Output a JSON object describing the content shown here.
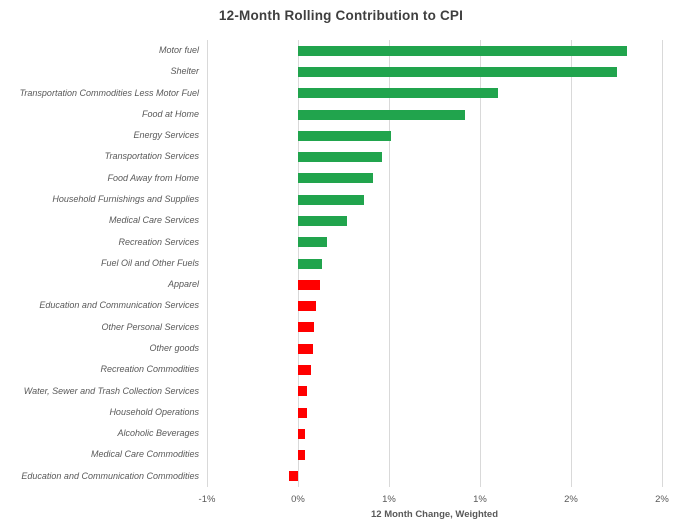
{
  "title": "12-Month Rolling Contribution to CPI",
  "colors": {
    "positive_bar": "#21a44d",
    "negative_and_flagged_bar": "#ff0000",
    "gridline": "#d9d9d9",
    "axis_text": "#595959",
    "title_text": "#3f3f3f",
    "background": "#ffffff"
  },
  "chart_data": {
    "type": "bar",
    "orientation": "horizontal",
    "title": "12-Month Rolling Contribution to CPI",
    "xlabel": "12 Month Change, Weighted",
    "ylabel": "",
    "xlim": [
      -0.5,
      2.0
    ],
    "x_ticks_percent": [
      -0.5,
      0.0,
      0.5,
      1.0,
      1.5,
      2.0
    ],
    "x_tick_labels": [
      "-1%",
      "0%",
      "1%",
      "1%",
      "2%",
      "2%"
    ],
    "grid": true,
    "legend": "none",
    "units": "percent",
    "categories": [
      "Motor fuel",
      "Shelter",
      "Transportation Commodities Less Motor Fuel",
      "Food at Home",
      "Energy Services",
      "Transportation Services",
      "Food Away from Home",
      "Household Furnishings and Supplies",
      "Medical Care Services",
      "Recreation Services",
      "Fuel Oil and Other Fuels",
      "Apparel",
      "Education and Communication Services",
      "Other Personal Services",
      "Other goods",
      "Recreation Commodities",
      "Water, Sewer and Trash Collection Services",
      "Household Operations",
      "Alcoholic Beverages",
      "Medical Care Commodities",
      "Education and Communication Commodities"
    ],
    "values": [
      1.81,
      1.75,
      1.1,
      0.92,
      0.51,
      0.46,
      0.41,
      0.36,
      0.27,
      0.16,
      0.13,
      0.12,
      0.1,
      0.09,
      0.08,
      0.07,
      0.05,
      0.05,
      0.04,
      0.04,
      -0.05
    ],
    "bar_colors": [
      "green",
      "green",
      "green",
      "green",
      "green",
      "green",
      "green",
      "green",
      "green",
      "green",
      "green",
      "red",
      "red",
      "red",
      "red",
      "red",
      "red",
      "red",
      "red",
      "red",
      "red"
    ]
  }
}
